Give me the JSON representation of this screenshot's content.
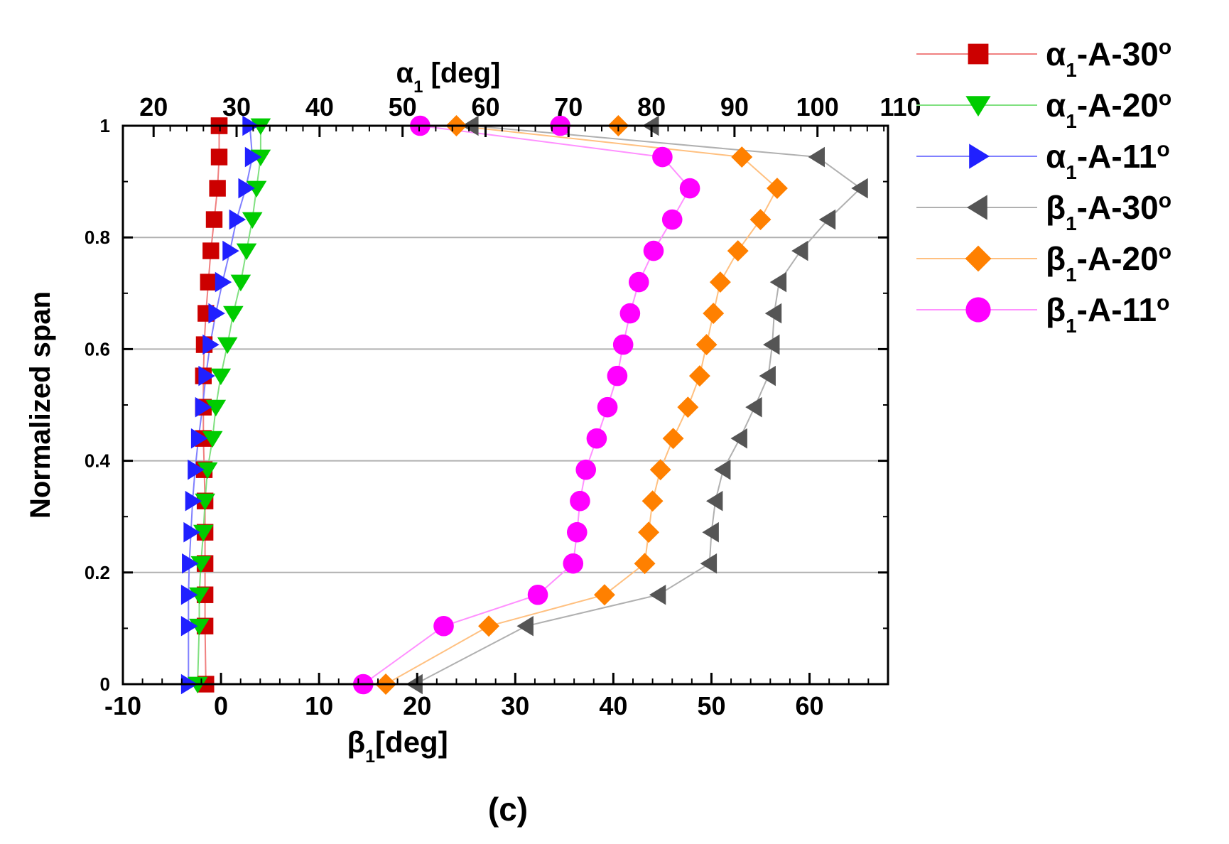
{
  "chart_data": {
    "type": "scatter",
    "title": "",
    "panel_label": "(c)",
    "ylabel": "Normalized span",
    "xlabel_bottom": {
      "base": "β",
      "sub": "1",
      "rest": "[deg]"
    },
    "xlabel_top": {
      "base": "α",
      "sub": "1",
      "rest": " [deg]"
    },
    "bottom_axis": {
      "range": [
        -10,
        68
      ],
      "ticks": [
        -10,
        0,
        10,
        20,
        30,
        40,
        50,
        60
      ]
    },
    "top_axis": {
      "range": [
        16.3,
        108.5
      ],
      "ticks": [
        20,
        30,
        40,
        50,
        60,
        70,
        80,
        90,
        100,
        110
      ]
    },
    "y_axis": {
      "range": [
        0,
        1
      ],
      "ticks": [
        0,
        0.2,
        0.4,
        0.6,
        0.8,
        1
      ],
      "tick_labels": [
        "0",
        "0.2",
        "0.4",
        "0.6",
        "0.8",
        "1"
      ],
      "gridlines": [
        0.2,
        0.4,
        0.6,
        0.8
      ]
    },
    "series": [
      {
        "name": "α1-A-30°",
        "label": {
          "base": "α",
          "sub": "1",
          "rest": "-A-30"
        },
        "axis": "top",
        "marker": "square",
        "color": "#cc0000",
        "line_color": "#f08080",
        "points": [
          [
            27.9,
            1.0
          ],
          [
            27.9,
            0.944
          ],
          [
            27.7,
            0.888
          ],
          [
            27.3,
            0.832
          ],
          [
            26.9,
            0.776
          ],
          [
            26.6,
            0.72
          ],
          [
            26.3,
            0.664
          ],
          [
            26.1,
            0.608
          ],
          [
            26.0,
            0.552
          ],
          [
            26.0,
            0.496
          ],
          [
            26.0,
            0.44
          ],
          [
            26.1,
            0.384
          ],
          [
            26.2,
            0.328
          ],
          [
            26.2,
            0.272
          ],
          [
            26.2,
            0.216
          ],
          [
            26.2,
            0.16
          ],
          [
            26.2,
            0.104
          ],
          [
            26.3,
            0.0
          ]
        ]
      },
      {
        "name": "α1-A-20°",
        "label": {
          "base": "α",
          "sub": "1",
          "rest": "-A-20"
        },
        "axis": "top",
        "marker": "triangle-down",
        "color": "#00cc00",
        "line_color": "#80e080",
        "points": [
          [
            32.9,
            1.0
          ],
          [
            32.9,
            0.944
          ],
          [
            32.4,
            0.888
          ],
          [
            31.9,
            0.832
          ],
          [
            31.2,
            0.776
          ],
          [
            30.5,
            0.72
          ],
          [
            29.6,
            0.664
          ],
          [
            28.9,
            0.608
          ],
          [
            28.1,
            0.552
          ],
          [
            27.5,
            0.496
          ],
          [
            27.1,
            0.44
          ],
          [
            26.5,
            0.384
          ],
          [
            26.2,
            0.328
          ],
          [
            26.0,
            0.272
          ],
          [
            25.7,
            0.216
          ],
          [
            25.5,
            0.16
          ],
          [
            25.5,
            0.104
          ],
          [
            25.3,
            0.0
          ]
        ]
      },
      {
        "name": "α1-A-11°",
        "label": {
          "base": "α",
          "sub": "1",
          "rest": "-A-11"
        },
        "axis": "top",
        "marker": "triangle-right",
        "color": "#2020ff",
        "line_color": "#8080ff",
        "points": [
          [
            31.6,
            1.0
          ],
          [
            31.9,
            0.944
          ],
          [
            31.1,
            0.888
          ],
          [
            30.0,
            0.832
          ],
          [
            29.2,
            0.776
          ],
          [
            28.3,
            0.72
          ],
          [
            27.5,
            0.664
          ],
          [
            26.8,
            0.608
          ],
          [
            26.3,
            0.552
          ],
          [
            25.9,
            0.496
          ],
          [
            25.4,
            0.44
          ],
          [
            25.0,
            0.384
          ],
          [
            24.7,
            0.328
          ],
          [
            24.5,
            0.272
          ],
          [
            24.3,
            0.216
          ],
          [
            24.2,
            0.16
          ],
          [
            24.2,
            0.104
          ],
          [
            24.2,
            0.0
          ]
        ]
      },
      {
        "name": "β1-A-30°",
        "label": {
          "base": "β",
          "sub": "1",
          "rest": "-A-30"
        },
        "axis": "bottom",
        "marker": "triangle-left",
        "color": "#555555",
        "line_color": "#b0b0b0",
        "points": [
          [
            25.5,
            1.0
          ],
          [
            60.8,
            0.944
          ],
          [
            65.2,
            0.888
          ],
          [
            61.9,
            0.832
          ],
          [
            59.1,
            0.776
          ],
          [
            56.9,
            0.72
          ],
          [
            56.4,
            0.664
          ],
          [
            56.2,
            0.608
          ],
          [
            55.8,
            0.552
          ],
          [
            54.4,
            0.496
          ],
          [
            52.9,
            0.44
          ],
          [
            51.2,
            0.384
          ],
          [
            50.4,
            0.328
          ],
          [
            50.0,
            0.272
          ],
          [
            49.8,
            0.216
          ],
          [
            44.6,
            0.16
          ],
          [
            31.1,
            0.104
          ],
          [
            19.8,
            0.0
          ]
        ]
      },
      {
        "name": "β1-A-20°",
        "label": {
          "base": "β",
          "sub": "1",
          "rest": "-A-20"
        },
        "axis": "bottom",
        "marker": "diamond",
        "color": "#ff8000",
        "line_color": "#ffc080",
        "points": [
          [
            24.0,
            1.0
          ],
          [
            53.1,
            0.944
          ],
          [
            56.7,
            0.888
          ],
          [
            55.0,
            0.832
          ],
          [
            52.7,
            0.776
          ],
          [
            50.9,
            0.72
          ],
          [
            50.2,
            0.664
          ],
          [
            49.5,
            0.608
          ],
          [
            48.8,
            0.552
          ],
          [
            47.6,
            0.496
          ],
          [
            46.1,
            0.44
          ],
          [
            44.8,
            0.384
          ],
          [
            44.0,
            0.328
          ],
          [
            43.6,
            0.272
          ],
          [
            43.2,
            0.216
          ],
          [
            39.1,
            0.16
          ],
          [
            27.3,
            0.104
          ],
          [
            16.8,
            0.0
          ]
        ]
      },
      {
        "name": "β1-A-11°",
        "label": {
          "base": "β",
          "sub": "1",
          "rest": "-A-11"
        },
        "axis": "bottom",
        "marker": "circle",
        "color": "#ff00ff",
        "line_color": "#ff90ff",
        "points": [
          [
            20.3,
            1.0
          ],
          [
            45.0,
            0.944
          ],
          [
            47.8,
            0.888
          ],
          [
            46.0,
            0.832
          ],
          [
            44.1,
            0.776
          ],
          [
            42.6,
            0.72
          ],
          [
            41.7,
            0.664
          ],
          [
            41.0,
            0.608
          ],
          [
            40.4,
            0.552
          ],
          [
            39.4,
            0.496
          ],
          [
            38.3,
            0.44
          ],
          [
            37.2,
            0.384
          ],
          [
            36.6,
            0.328
          ],
          [
            36.3,
            0.272
          ],
          [
            35.9,
            0.216
          ],
          [
            32.3,
            0.16
          ],
          [
            22.7,
            0.104
          ],
          [
            14.5,
            0.0
          ]
        ]
      }
    ],
    "extra_points": [
      {
        "series": "α1-A-30°",
        "axis": "top",
        "point": [
          27.9,
          1.0
        ]
      },
      {
        "series": "β1-A-30°",
        "axis": "top",
        "point": [
          80.0,
          1.0
        ]
      },
      {
        "series": "β1-A-20°",
        "axis": "top",
        "point": [
          76.0,
          1.0
        ]
      },
      {
        "series": "β1-A-11°",
        "axis": "top",
        "point": [
          69.0,
          1.0
        ]
      }
    ]
  }
}
